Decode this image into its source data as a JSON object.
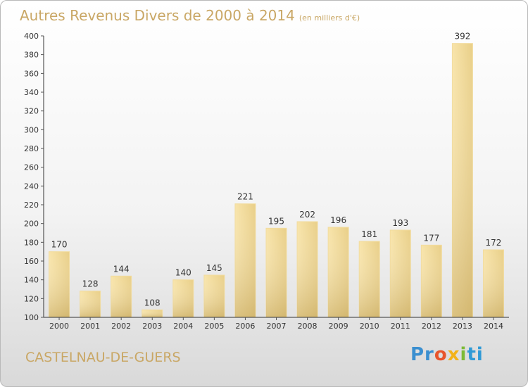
{
  "title": "Autres Revenus Divers de 2000 à 2014",
  "title_unit": "(en milliers d'€)",
  "location": "CASTELNAU-DE-GUERS",
  "logo": {
    "text": "Proxiti",
    "parts": [
      "Pr",
      "o",
      "x",
      "i",
      "ti"
    ]
  },
  "colors": {
    "title": "#c9a765",
    "bar_light": "#f7df9f",
    "bar_dark": "#c8ad68",
    "axis": "#333333",
    "grid_tick": "#555555"
  },
  "chart_data": {
    "type": "bar",
    "categories": [
      "2000",
      "2001",
      "2002",
      "2003",
      "2004",
      "2005",
      "2006",
      "2007",
      "2008",
      "2009",
      "2010",
      "2011",
      "2012",
      "2013",
      "2014"
    ],
    "values": [
      170,
      128,
      144,
      108,
      140,
      145,
      221,
      195,
      202,
      196,
      181,
      193,
      177,
      392,
      172
    ],
    "ylim": [
      100,
      400
    ],
    "yticks": [
      100,
      120,
      140,
      160,
      180,
      200,
      220,
      240,
      260,
      280,
      300,
      320,
      340,
      360,
      380,
      400
    ],
    "grid": false,
    "legend": "none",
    "title": "Autres Revenus Divers de 2000 à 2014",
    "xlabel": "",
    "ylabel": ""
  }
}
